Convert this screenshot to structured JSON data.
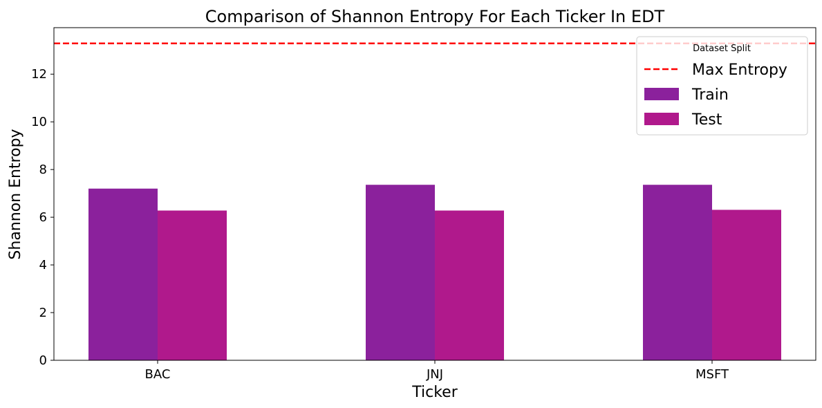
{
  "chart_data": {
    "type": "bar",
    "title": "Comparison of Shannon Entropy For Each Ticker In EDT",
    "xlabel": "Ticker",
    "ylabel": "Shannon Entropy",
    "categories": [
      "BAC",
      "JNJ",
      "MSFT"
    ],
    "series": [
      {
        "name": "Train",
        "values": [
          7.2,
          7.36,
          7.36
        ],
        "color": "#8b219c"
      },
      {
        "name": "Test",
        "values": [
          6.28,
          6.28,
          6.31
        ],
        "color": "#b0198c"
      }
    ],
    "reference_line": {
      "name": "Max Entropy",
      "value": 13.29,
      "color": "#ff0000",
      "style": "dashed"
    },
    "ylim": [
      0,
      13.95
    ],
    "yticks": [
      "0",
      "2",
      "4",
      "6",
      "8",
      "10",
      "12"
    ],
    "grid": false,
    "legend": {
      "title": "Dataset Split",
      "placement": "top-right"
    }
  }
}
